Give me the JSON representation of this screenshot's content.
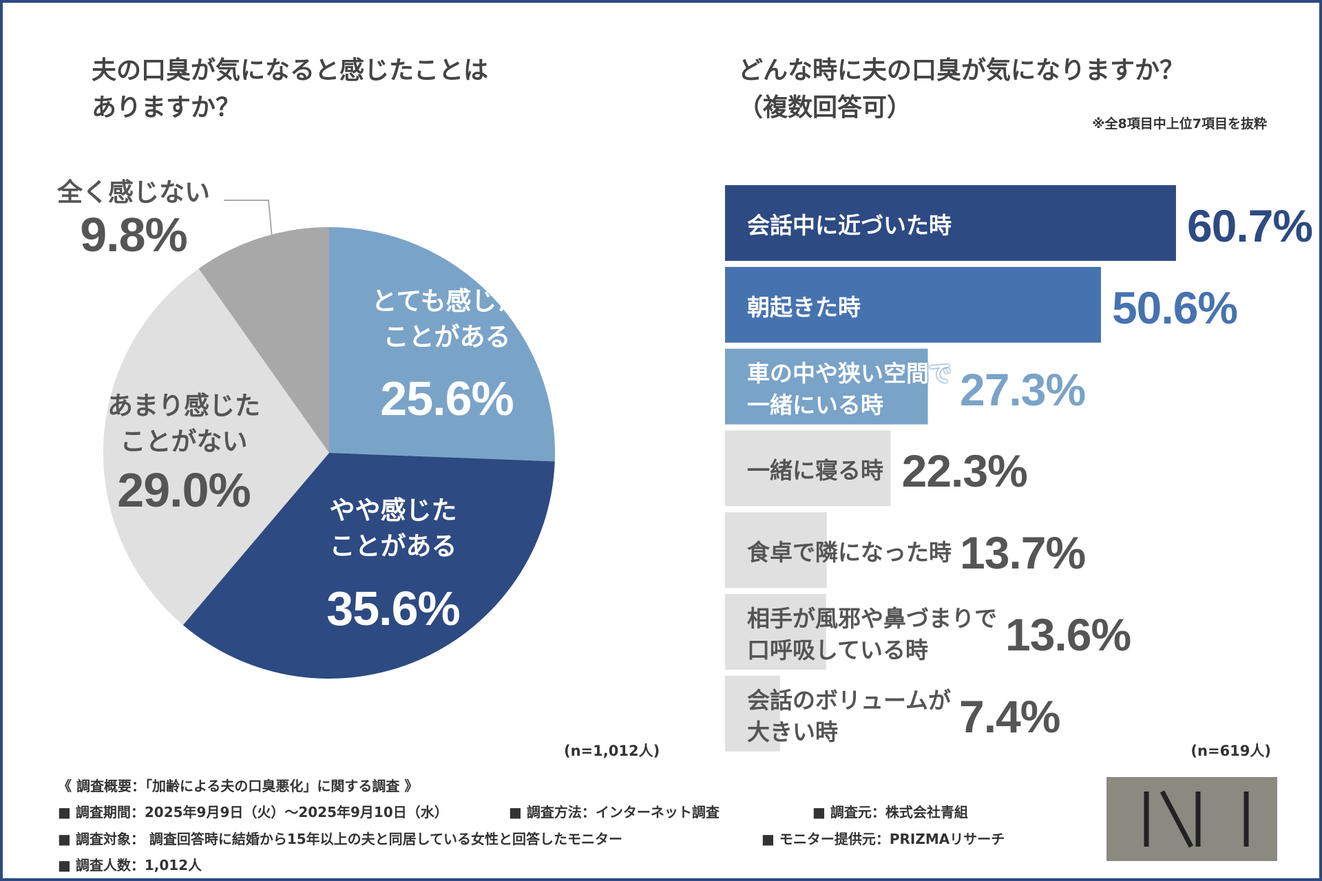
{
  "chart_data": [
    {
      "type": "pie",
      "title": "夫の口臭が気になると感じたことは\nありますか？",
      "categories": [
        "とても感じた\nことがある",
        "やや感じた\nことがある",
        "あまり感じた\nことがない",
        "全く感じない"
      ],
      "values": [
        25.6,
        35.6,
        29.0,
        9.8
      ],
      "value_labels": [
        "25.6%",
        "35.6%",
        "29.0%",
        "9.8%"
      ],
      "colors": [
        "#7aa3c8",
        "#2d4a82",
        "#e0e0e0",
        "#a8a8a8"
      ],
      "note": "(n=1,012人)"
    },
    {
      "type": "hbar",
      "title": "どんな時に夫の口臭が気になりますか？\n（複数回答可）",
      "subtitle": "※全8項目中上位7項目を抜粋",
      "categories": [
        "会話中に近づいた時",
        "朝起きた時",
        "車の中や狭い空間で\n一緒にいる時",
        "一緒に寝る時",
        "食卓で隣になった時",
        "相手が風邪や鼻づまりで\n口呼吸している時",
        "会話のボリュームが\n大きい時"
      ],
      "values": [
        60.7,
        50.6,
        27.3,
        22.3,
        13.7,
        13.6,
        7.4
      ],
      "value_labels": [
        "60.7%",
        "50.6%",
        "27.3%",
        "22.3%",
        "13.7%",
        "13.6%",
        "7.4%"
      ],
      "colors": [
        "#2d4a82",
        "#4673b0",
        "#7aa3c8",
        "#e0e0e0",
        "#e0e0e0",
        "#e0e0e0",
        "#e0e0e0"
      ],
      "xlim": [
        0,
        100
      ],
      "note": "(n=619人)"
    }
  ],
  "footer": [
    "《 調査概要：「加齢による夫の口臭悪化」に関する調査 》",
    "■ 調査期間：2025年9月9日（火）～2025年9月10日（水）",
    "■ 調査方法：インターネット調査",
    "■ 調査元：株式会社青組",
    "■ 調査対象： 調査回答時に結婚から15年以上の夫と同居している女性と回答したモニター",
    "■ モニター提供元：PRIZMAリサーチ",
    "■ 調査人数：1,012人"
  ]
}
